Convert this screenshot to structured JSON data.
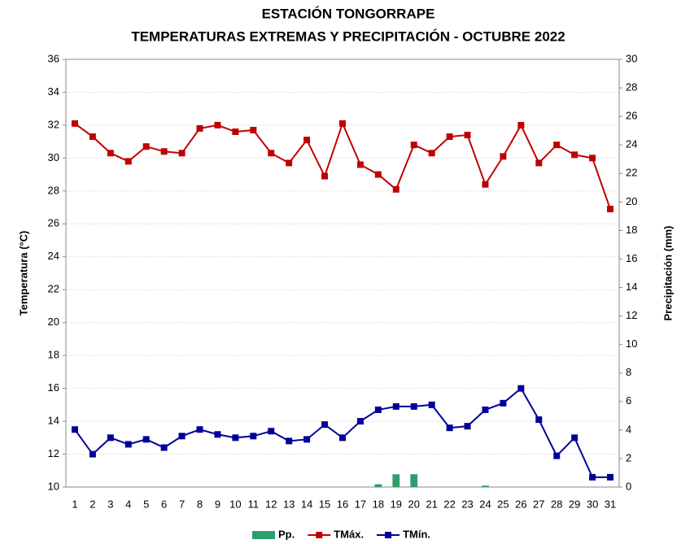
{
  "chart_data": {
    "type": "line",
    "title": "ESTACIÓN TONGORRAPE",
    "subtitle": "TEMPERATURAS EXTREMAS Y PRECIPITACIÓN - OCTUBRE 2022",
    "ylabel": "Temperatura (°C)",
    "y2label": "Precipitación (mm)",
    "categories": [
      "1",
      "2",
      "3",
      "4",
      "5",
      "6",
      "7",
      "8",
      "9",
      "10",
      "11",
      "12",
      "13",
      "14",
      "15",
      "16",
      "17",
      "18",
      "19",
      "20",
      "21",
      "22",
      "23",
      "24",
      "25",
      "26",
      "27",
      "28",
      "29",
      "30",
      "31"
    ],
    "series": [
      {
        "name": "Pp.",
        "type": "bar",
        "axis": "y2",
        "color": "#2e9e6b",
        "values": [
          0,
          0,
          0,
          0,
          0,
          0,
          0,
          0,
          0,
          0,
          0,
          0,
          0,
          0,
          0,
          0,
          0,
          0.2,
          0.9,
          0.9,
          0,
          0,
          0,
          0.1,
          0,
          0,
          0,
          0,
          0,
          0,
          0
        ]
      },
      {
        "name": "TMáx.",
        "type": "line",
        "color": "#c00000",
        "values": [
          32.1,
          31.3,
          30.3,
          29.8,
          30.7,
          30.4,
          30.3,
          31.8,
          32.0,
          31.6,
          31.7,
          30.3,
          29.7,
          31.1,
          28.9,
          32.1,
          29.6,
          29.0,
          28.1,
          30.8,
          30.3,
          31.3,
          31.4,
          28.4,
          30.1,
          32.0,
          29.7,
          30.8,
          30.2,
          30.0,
          26.9
        ]
      },
      {
        "name": "TMín.",
        "type": "line",
        "color": "#000099",
        "values": [
          13.5,
          12.0,
          13.0,
          12.6,
          12.9,
          12.4,
          13.1,
          13.5,
          13.2,
          13.0,
          13.1,
          13.4,
          12.8,
          12.9,
          13.8,
          13.0,
          14.0,
          14.7,
          14.9,
          14.9,
          15.0,
          13.6,
          13.7,
          14.7,
          15.1,
          16.0,
          14.1,
          11.9,
          13.0,
          10.6,
          10.6
        ]
      }
    ],
    "ylim": [
      10,
      36
    ],
    "yticks": [
      10,
      12,
      14,
      16,
      18,
      20,
      22,
      24,
      26,
      28,
      30,
      32,
      34,
      36
    ],
    "y2lim": [
      0,
      30
    ],
    "y2ticks": [
      0,
      2,
      4,
      6,
      8,
      10,
      12,
      14,
      16,
      18,
      20,
      22,
      24,
      26,
      28,
      30
    ],
    "grid": true,
    "legend": "bottom"
  }
}
